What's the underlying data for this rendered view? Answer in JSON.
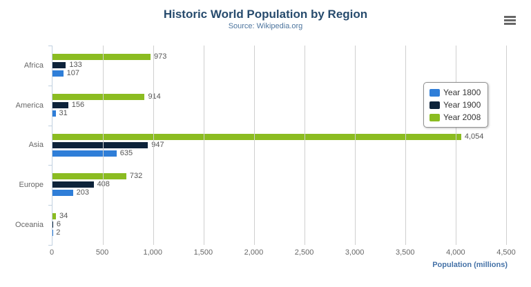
{
  "title": "Historic World Population by Region",
  "subtitle": "Source: Wikipedia.org",
  "menu": {
    "icon": "hamburger-menu-icon"
  },
  "chart_data": {
    "type": "bar",
    "orientation": "horizontal",
    "title": "Historic World Population by Region",
    "subtitle": "Source: Wikipedia.org",
    "categories": [
      "Africa",
      "America",
      "Asia",
      "Europe",
      "Oceania"
    ],
    "series": [
      {
        "name": "Year 1800",
        "color": "#2f7ed8",
        "values": [
          107,
          31,
          635,
          203,
          2
        ]
      },
      {
        "name": "Year 1900",
        "color": "#0d233a",
        "values": [
          133,
          156,
          947,
          408,
          6
        ]
      },
      {
        "name": "Year 2008",
        "color": "#8bbc21",
        "values": [
          973,
          914,
          4054,
          732,
          34
        ]
      }
    ],
    "bar_order_top_to_bottom": [
      "Year 2008",
      "Year 1900",
      "Year 1800"
    ],
    "data_labels": true,
    "xlabel": "Population (millions)",
    "xlim": [
      0,
      4500
    ],
    "xticks": [
      0,
      500,
      1000,
      1500,
      2000,
      2500,
      3000,
      3500,
      4000,
      4500
    ],
    "xtick_labels": [
      "0",
      "500",
      "1,000",
      "1,500",
      "2,000",
      "2,500",
      "3,000",
      "3,500",
      "4,000",
      "4,500"
    ],
    "grid": true,
    "legend_position": "right",
    "legend": [
      "Year 1800",
      "Year 1900",
      "Year 2008"
    ]
  },
  "colors": {
    "title": "#274b6d",
    "subtitle": "#4d759e",
    "axis_title": "#4572a7",
    "tick_label": "#666666",
    "category_label": "#666666",
    "data_label": "#555555",
    "gridline": "#cfcfcf",
    "axis_line": "#C0D0E0",
    "legend_border": "#909090",
    "menu_icon": "#666666"
  }
}
